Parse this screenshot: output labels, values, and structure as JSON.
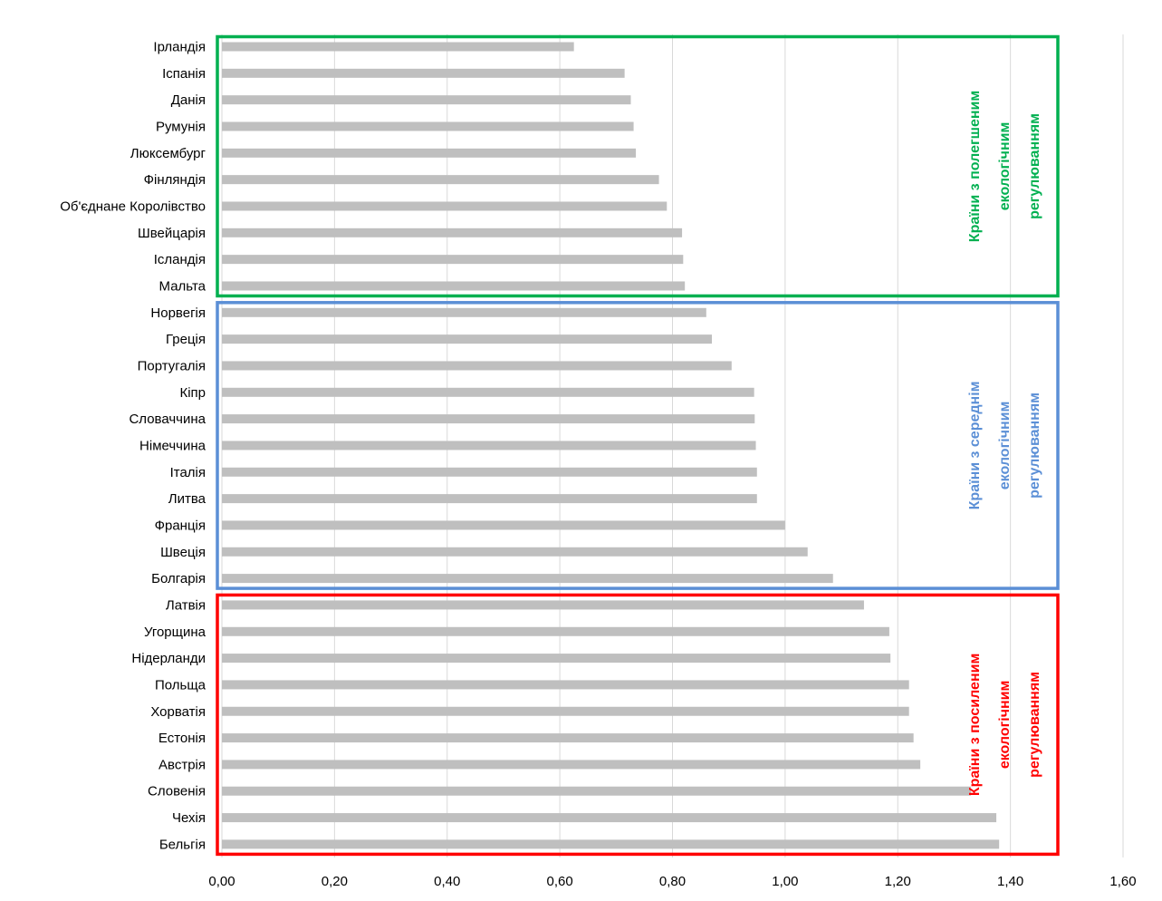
{
  "chart_data": {
    "type": "bar",
    "orientation": "horizontal",
    "xlim": [
      0,
      1.6
    ],
    "x_tick_labels": [
      "0,00",
      "0,20",
      "0,40",
      "0,60",
      "0,80",
      "1,00",
      "1,20",
      "1,40",
      "1,60"
    ],
    "x_ticks": [
      0,
      0.2,
      0.4,
      0.6,
      0.8,
      1.0,
      1.2,
      1.4,
      1.6
    ],
    "grid": "vertical",
    "bar_color": "#bfbfbf",
    "categories": [
      "Ірландія",
      "Іспанія",
      "Данія",
      "Румунія",
      "Люксембург",
      "Фінляндія",
      "Об'єднане Королівство",
      "Швейцарія",
      "Ісландія",
      "Мальта",
      "Норвегія",
      "Греція",
      "Португалія",
      "Кіпр",
      "Словаччина",
      "Німеччина",
      "Італія",
      "Литва",
      "Франція",
      "Швеція",
      "Болгарія",
      "Латвія",
      "Угорщина",
      "Нідерланди",
      "Польща",
      "Хорватія",
      "Естонія",
      "Австрія",
      "Словенія",
      "Чехія",
      "Бельгія"
    ],
    "values": [
      0.625,
      0.715,
      0.726,
      0.731,
      0.735,
      0.776,
      0.79,
      0.817,
      0.819,
      0.822,
      0.86,
      0.87,
      0.905,
      0.945,
      0.946,
      0.948,
      0.95,
      0.95,
      1.0,
      1.04,
      1.085,
      1.14,
      1.185,
      1.187,
      1.22,
      1.22,
      1.228,
      1.24,
      1.33,
      1.375,
      1.38
    ],
    "groups": [
      {
        "label_lines": [
          "Країни з полегшеним",
          "екологічним",
          "регулюванням"
        ],
        "color": "#00b050",
        "first": 0,
        "last": 9
      },
      {
        "label_lines": [
          "Країни з середнім",
          "екологічним",
          "регулюванням"
        ],
        "color": "#5b8fd6",
        "first": 10,
        "last": 20
      },
      {
        "label_lines": [
          "Країни з посиленим",
          "екологічним",
          "регулюванням"
        ],
        "color": "#ff0000",
        "first": 21,
        "last": 30
      }
    ]
  }
}
